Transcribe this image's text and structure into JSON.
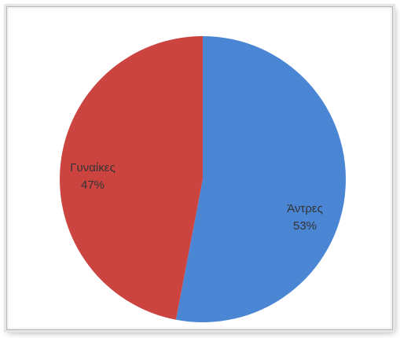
{
  "chart_data": {
    "type": "pie",
    "title": "",
    "slices": [
      {
        "label": "Άντρες",
        "value": 53,
        "value_label": "53%",
        "color": "#4a86d4"
      },
      {
        "label": "Γυναίκες",
        "value": 47,
        "value_label": "47%",
        "color": "#cc4440"
      }
    ],
    "start_angle_deg": 0,
    "direction": "clockwise",
    "legend": "none"
  }
}
